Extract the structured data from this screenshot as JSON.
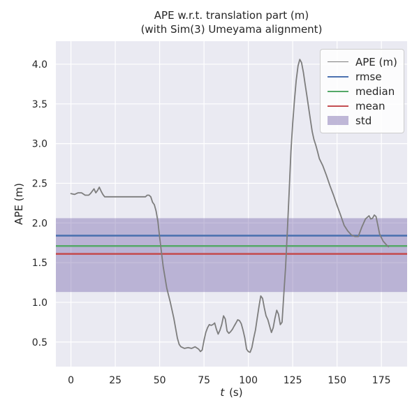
{
  "chart_data": {
    "type": "line",
    "title": "APE w.r.t. translation part (m)",
    "subtitle": "(with Sim(3) Umeyama alignment)",
    "xlabel": "t (s)",
    "xlabel_italic": "t",
    "xlabel_rest": " (s)",
    "ylabel": "APE (m)",
    "xlim": [
      -8.5,
      189.5
    ],
    "ylim": [
      0.19,
      4.29
    ],
    "x_ticks": [
      0,
      25,
      50,
      75,
      100,
      125,
      150,
      175
    ],
    "x_tick_labels": [
      "0",
      "25",
      "50",
      "75",
      "100",
      "125",
      "150",
      "175"
    ],
    "y_ticks": [
      0.5,
      1.0,
      1.5,
      2.0,
      2.5,
      3.0,
      3.5,
      4.0
    ],
    "y_tick_labels": [
      "0.5",
      "1.0",
      "1.5",
      "2.0",
      "2.5",
      "3.0",
      "3.5",
      "4.0"
    ],
    "grid": true,
    "legend_position": "upper right",
    "colors": {
      "axes_background": "#eaeaf2",
      "grid": "#ffffff",
      "text": "#262626",
      "ape_line": "#7d7d7d",
      "rmse": "#4c72b0",
      "median": "#55a868",
      "mean": "#c44e52",
      "std": "#8172b2"
    },
    "series": [
      {
        "name": "APE (m)",
        "kind": "line",
        "color": "#7d7d7d",
        "line_width": 1.8,
        "x": [
          0,
          2,
          4,
          6,
          8,
          10,
          11,
          12,
          13,
          14,
          15,
          16,
          17,
          18,
          19,
          21,
          25,
          30,
          35,
          40,
          42,
          43,
          44,
          45,
          46,
          47,
          48,
          49,
          50,
          52,
          54,
          56,
          58,
          60,
          61,
          62,
          64,
          66,
          68,
          70,
          72,
          73,
          74,
          75,
          76,
          77,
          78,
          79,
          80,
          81,
          82,
          83,
          84,
          85,
          86,
          87,
          88,
          89,
          90,
          91,
          92,
          93,
          94,
          95,
          96,
          97,
          98,
          99,
          100,
          101,
          102,
          103,
          104,
          105,
          106,
          107,
          108,
          109,
          110,
          111,
          112,
          113,
          114,
          115,
          116,
          117,
          118,
          119,
          120,
          121,
          122,
          123,
          124,
          125,
          126,
          127,
          128,
          129,
          130,
          131,
          132,
          133,
          134,
          135,
          136,
          137,
          138,
          139,
          140,
          142,
          144,
          146,
          148,
          150,
          152,
          154,
          156,
          158,
          160,
          162,
          164,
          166,
          168,
          169,
          170,
          171,
          172,
          173,
          174,
          176,
          178,
          179
        ],
        "y": [
          2.37,
          2.36,
          2.38,
          2.38,
          2.35,
          2.35,
          2.37,
          2.4,
          2.43,
          2.38,
          2.41,
          2.45,
          2.4,
          2.36,
          2.33,
          2.33,
          2.33,
          2.33,
          2.33,
          2.33,
          2.33,
          2.35,
          2.35,
          2.33,
          2.26,
          2.23,
          2.15,
          2.02,
          1.82,
          1.45,
          1.18,
          1.0,
          0.8,
          0.55,
          0.47,
          0.44,
          0.42,
          0.43,
          0.42,
          0.44,
          0.41,
          0.38,
          0.4,
          0.52,
          0.62,
          0.68,
          0.72,
          0.71,
          0.72,
          0.74,
          0.66,
          0.6,
          0.65,
          0.72,
          0.83,
          0.79,
          0.64,
          0.61,
          0.63,
          0.66,
          0.7,
          0.74,
          0.78,
          0.77,
          0.73,
          0.65,
          0.55,
          0.41,
          0.38,
          0.37,
          0.43,
          0.55,
          0.65,
          0.8,
          0.95,
          1.08,
          1.05,
          0.93,
          0.83,
          0.78,
          0.7,
          0.62,
          0.68,
          0.8,
          0.9,
          0.85,
          0.72,
          0.75,
          1.1,
          1.45,
          1.9,
          2.4,
          2.9,
          3.25,
          3.55,
          3.8,
          3.98,
          4.06,
          4.02,
          3.9,
          3.75,
          3.6,
          3.45,
          3.3,
          3.15,
          3.05,
          2.98,
          2.9,
          2.81,
          2.72,
          2.6,
          2.47,
          2.35,
          2.22,
          2.1,
          1.97,
          1.9,
          1.85,
          1.83,
          1.83,
          1.95,
          2.05,
          2.09,
          2.05,
          2.06,
          2.1,
          2.08,
          1.97,
          1.86,
          1.77,
          1.72,
          1.7
        ]
      },
      {
        "name": "rmse",
        "kind": "hline",
        "color": "#4c72b0",
        "line_width": 2.6,
        "value": 1.84
      },
      {
        "name": "median",
        "kind": "hline",
        "color": "#55a868",
        "line_width": 2.6,
        "value": 1.71
      },
      {
        "name": "mean",
        "kind": "hline",
        "color": "#c44e52",
        "line_width": 2.6,
        "value": 1.61
      },
      {
        "name": "std",
        "kind": "hband",
        "color": "#8172b2",
        "range": [
          1.13,
          2.06
        ]
      }
    ]
  }
}
